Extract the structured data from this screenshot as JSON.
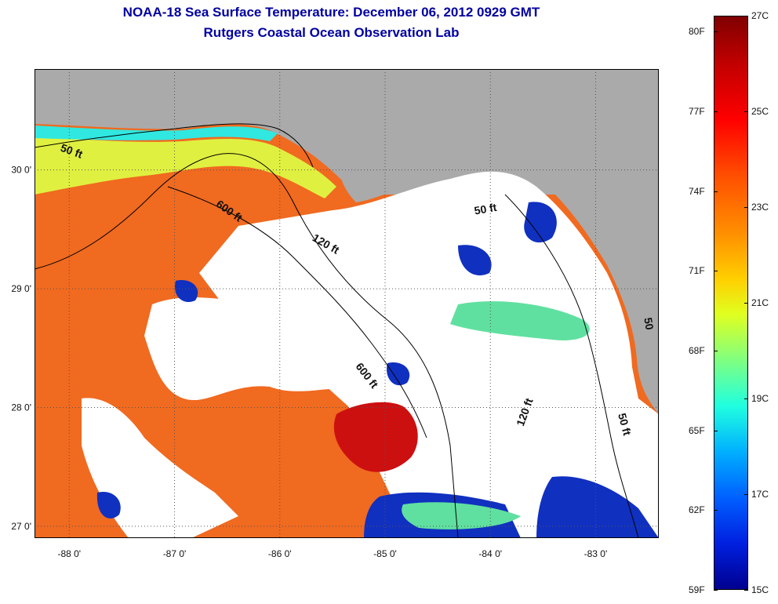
{
  "title": {
    "line1": "NOAA-18 Sea Surface Temperature:  December 06, 2012 0929 GMT",
    "line2": "Rutgers Coastal Ocean Observation Lab"
  },
  "map": {
    "lon_range": [
      -88.33,
      -82.4
    ],
    "lat_range": [
      26.9,
      30.85
    ],
    "lon_ticks": [
      {
        "value": -88,
        "label": "-88 0'"
      },
      {
        "value": -87,
        "label": "-87 0'"
      },
      {
        "value": -86,
        "label": "-86 0'"
      },
      {
        "value": -85,
        "label": "-85 0'"
      },
      {
        "value": -84,
        "label": "-84 0'"
      },
      {
        "value": -83,
        "label": "-83 0'"
      }
    ],
    "lat_ticks": [
      {
        "value": 30,
        "label": "30 0'"
      },
      {
        "value": 29,
        "label": "29 0'"
      },
      {
        "value": 28,
        "label": "28 0'"
      },
      {
        "value": 27,
        "label": "27 0'"
      }
    ],
    "contour_labels": [
      {
        "text": "50 ft",
        "lon": -87.99,
        "lat": 30.13,
        "rotate": 20
      },
      {
        "text": "600 ft",
        "lon": -86.5,
        "lat": 29.63,
        "rotate": 35
      },
      {
        "text": "120 ft",
        "lon": -85.58,
        "lat": 29.35,
        "rotate": 30
      },
      {
        "text": "50 ft",
        "lon": -84.04,
        "lat": 29.64,
        "rotate": -10
      },
      {
        "text": "600 ft",
        "lon": -85.2,
        "lat": 28.25,
        "rotate": 52
      },
      {
        "text": "120 ft",
        "lon": -83.64,
        "lat": 27.95,
        "rotate": -70
      },
      {
        "text": "50 ft",
        "lon": -82.76,
        "lat": 27.85,
        "rotate": 75
      },
      {
        "text": "50",
        "lon": -82.53,
        "lat": 28.7,
        "rotate": 80
      }
    ],
    "colors": {
      "land": "#aaaaaa",
      "cloud": "#ffffff",
      "gridline": "#555555"
    }
  },
  "colorbar": {
    "fahrenheit": [
      {
        "label": "80F",
        "value": 80
      },
      {
        "label": "77F",
        "value": 77
      },
      {
        "label": "74F",
        "value": 74
      },
      {
        "label": "71F",
        "value": 71
      },
      {
        "label": "68F",
        "value": 68
      },
      {
        "label": "65F",
        "value": 65
      },
      {
        "label": "62F",
        "value": 62
      },
      {
        "label": "59F",
        "value": 59
      }
    ],
    "celsius": [
      {
        "label": "27C",
        "value": 27
      },
      {
        "label": "25C",
        "value": 25
      },
      {
        "label": "23C",
        "value": 23
      },
      {
        "label": "21C",
        "value": 21
      },
      {
        "label": "19C",
        "value": 19
      },
      {
        "label": "17C",
        "value": 17
      },
      {
        "label": "15C",
        "value": 15
      }
    ],
    "range_c": [
      15,
      27
    ]
  }
}
